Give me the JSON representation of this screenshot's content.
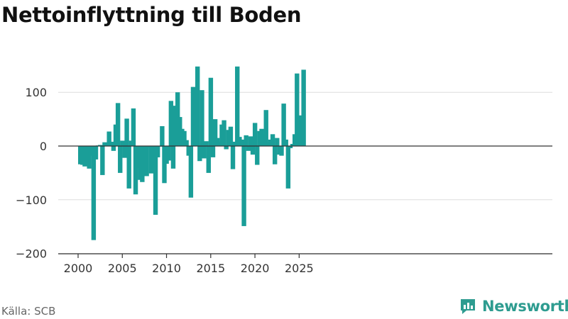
{
  "header": {
    "title": "Nettoinflyttning till Boden"
  },
  "footer": {
    "source": "Källa: SCB",
    "brand": "Newsworthy"
  },
  "colors": {
    "bar": "#1a9e98",
    "grid": "#dddddd",
    "zero_line": "#333333",
    "brand": "#2e9c90"
  },
  "chart_data": {
    "type": "bar",
    "title": "Nettoinflyttning till Boden",
    "xlabel": "",
    "ylabel": "",
    "x_ticks": [
      "2000",
      "2005",
      "2010",
      "2015",
      "2020",
      "2025"
    ],
    "y_ticks": [
      "−200",
      "−100",
      "0",
      "100"
    ],
    "ylim": [
      -200,
      150
    ],
    "grid": true,
    "series": [
      {
        "values": [
          -34,
          -35,
          -38,
          -33,
          -42,
          -18,
          -175,
          -25,
          1,
          2,
          -54,
          7,
          3,
          27,
          8,
          -9,
          40,
          80,
          -50,
          10,
          -22,
          51,
          -79,
          10,
          70,
          -90,
          -40,
          -63,
          -67,
          -3,
          -56,
          -3,
          -51,
          -2,
          -128,
          -21,
          -1,
          37,
          -69,
          -33,
          -27,
          84,
          -42,
          75,
          100,
          54,
          32,
          28,
          11,
          -18,
          -96,
          110,
          59,
          148,
          -28,
          104,
          -23,
          9,
          -50,
          127,
          -21,
          50,
          15,
          8,
          40,
          48,
          -6,
          30,
          36,
          -43,
          8,
          148,
          17,
          12,
          -149,
          20,
          -9,
          18,
          -16,
          43,
          -35,
          28,
          32,
          22,
          67,
          7,
          12,
          22,
          -34,
          15,
          -16,
          -18,
          79,
          12,
          -79,
          -4,
          4,
          22,
          135,
          41,
          57,
          142
        ]
      }
    ]
  }
}
